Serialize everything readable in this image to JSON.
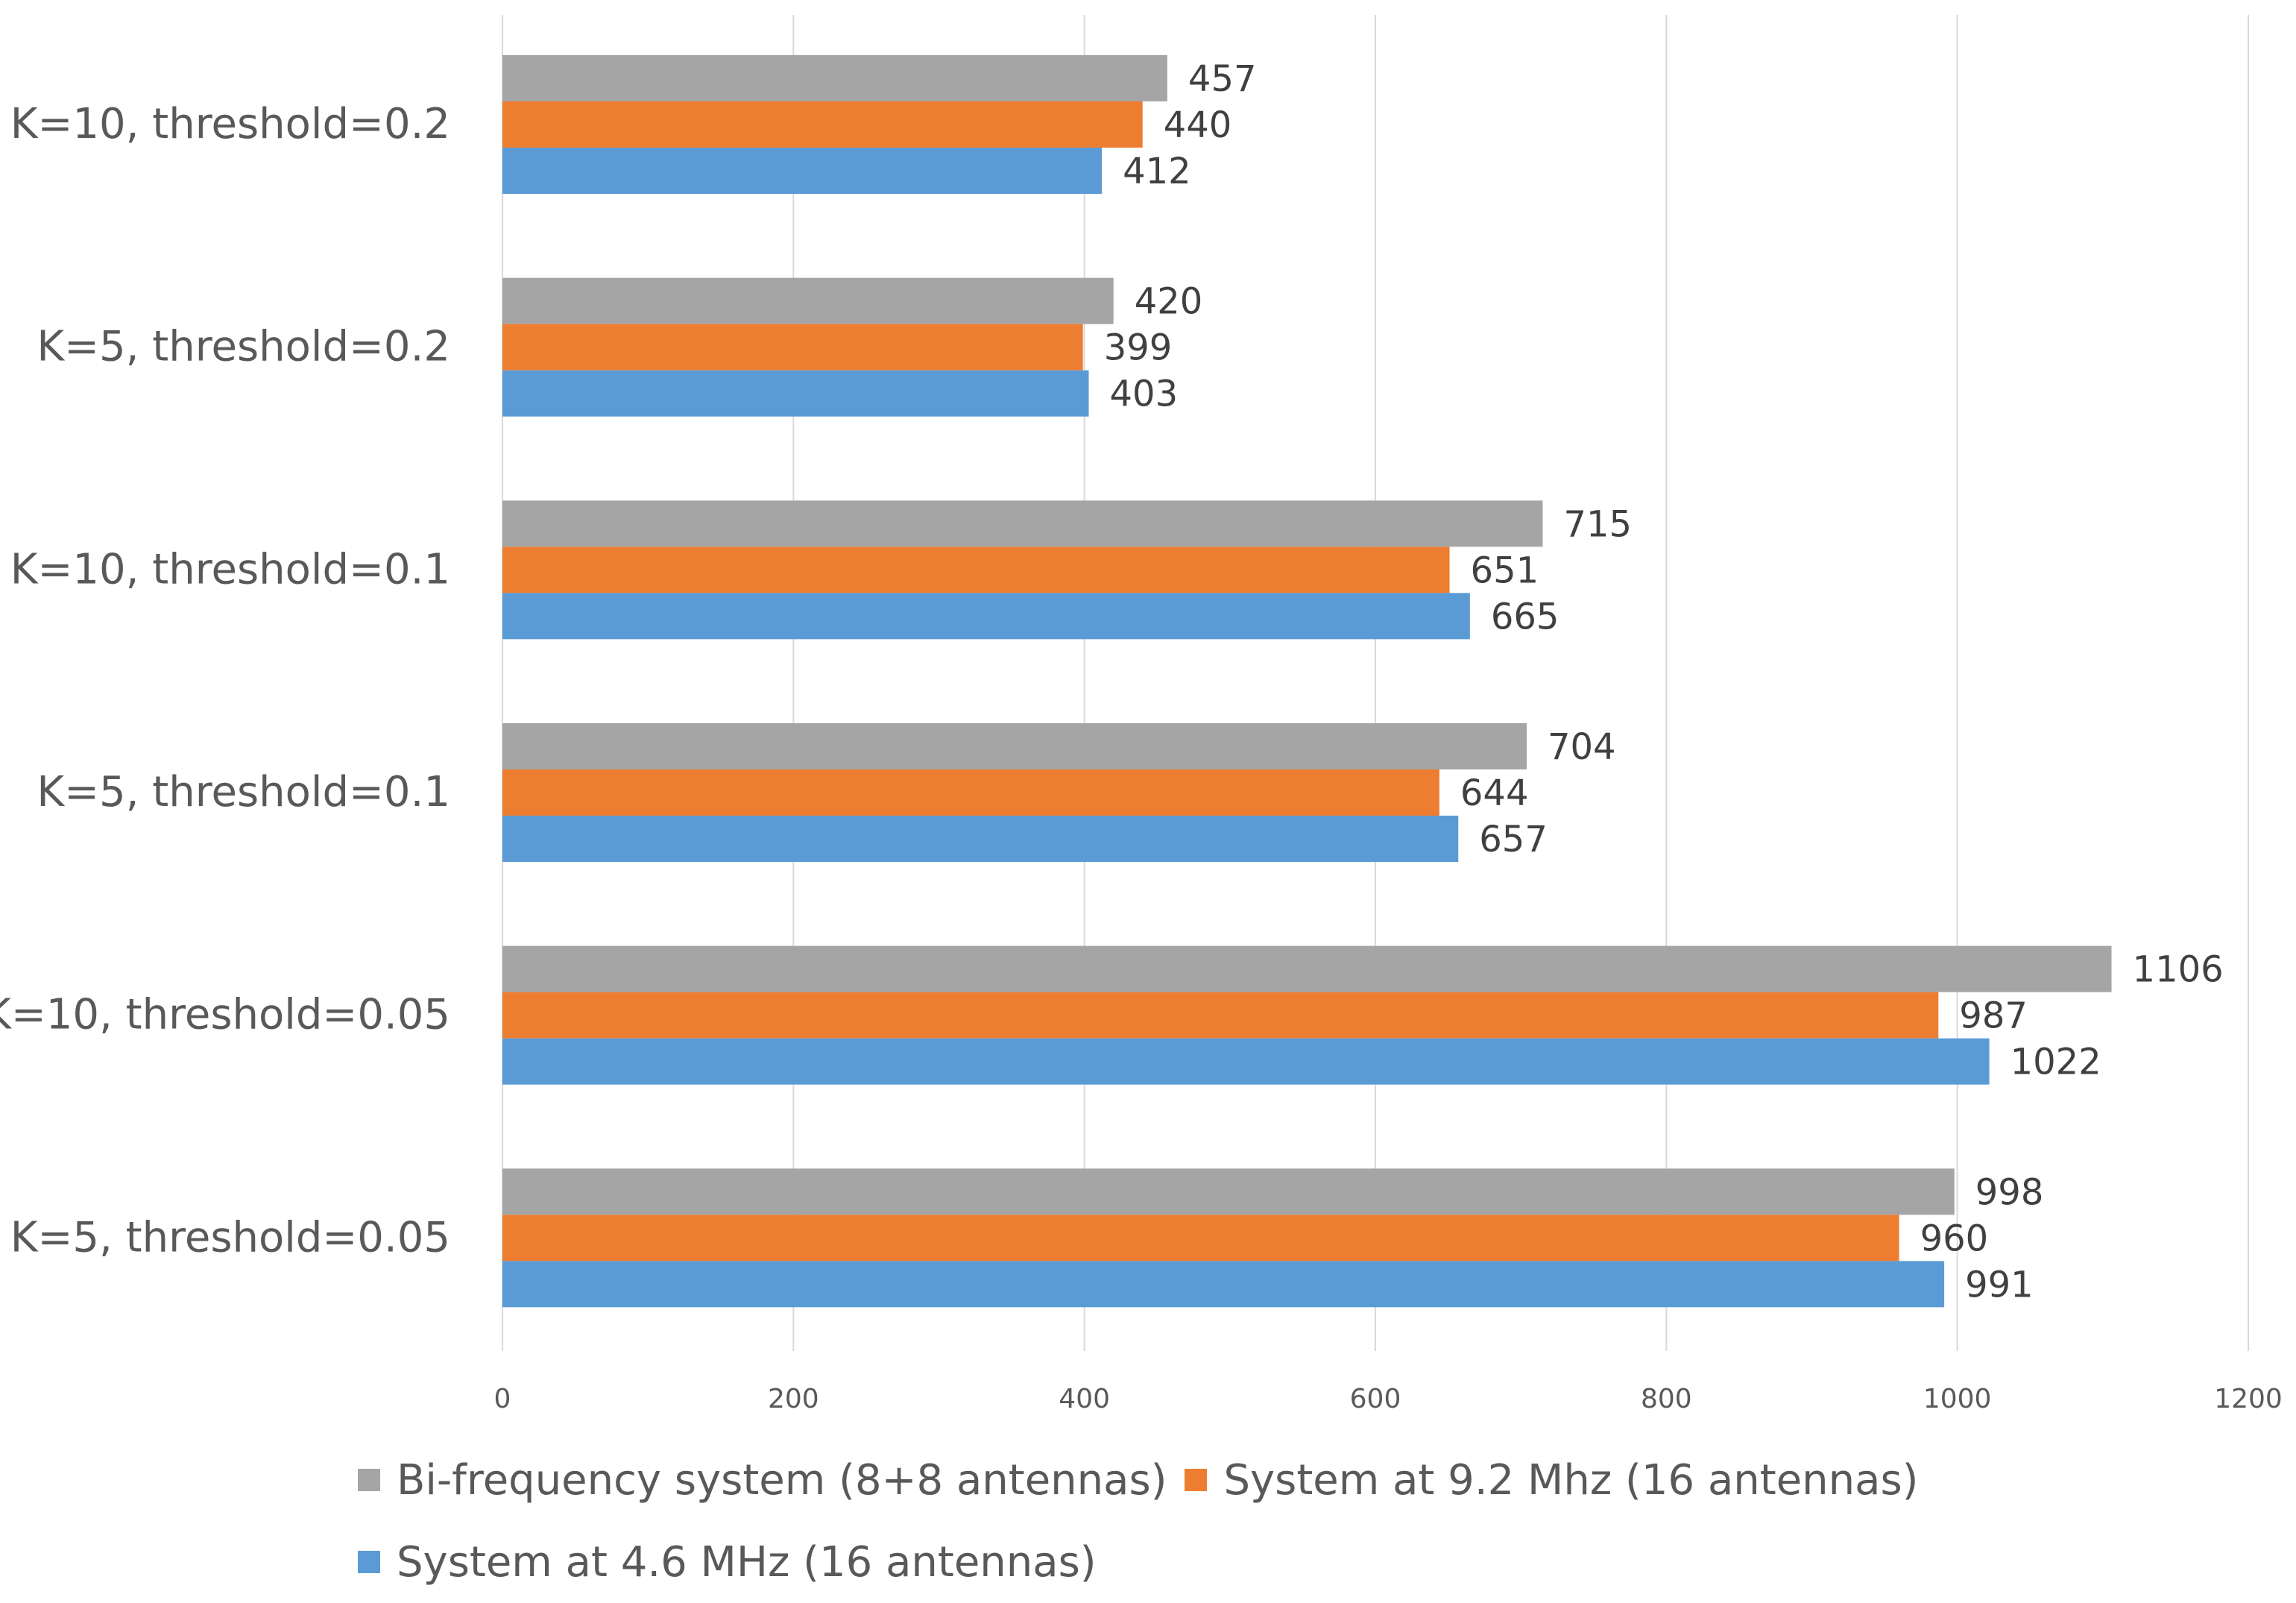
{
  "chart_data": {
    "type": "bar",
    "orientation": "horizontal",
    "categories": [
      "K=10, threshold=0.2",
      "K=5, threshold=0.2",
      "K=10, threshold=0.1",
      "K=5, threshold=0.1",
      "K=10, threshold=0.05",
      "K=5, threshold=0.05"
    ],
    "series": [
      {
        "name": "Bi-frequency system (8+8 antennas)",
        "color": "#A5A5A5",
        "values": [
          457,
          420,
          715,
          704,
          1106,
          998
        ]
      },
      {
        "name": "System at 9.2 Mhz (16 antennas)",
        "color": "#ED7D31",
        "values": [
          440,
          399,
          651,
          644,
          987,
          960
        ]
      },
      {
        "name": "System at 4.6 MHz (16 antennas)",
        "color": "#5B9BD5",
        "values": [
          412,
          403,
          665,
          657,
          1022,
          991
        ]
      }
    ],
    "xlim": [
      0,
      1200
    ],
    "xticks": [
      "0",
      "200",
      "400",
      "600",
      "800",
      "1000",
      "1200"
    ],
    "title": "",
    "xlabel": "",
    "ylabel": "",
    "grid": "vertical",
    "legend_position": "bottom",
    "data_labels": true
  }
}
